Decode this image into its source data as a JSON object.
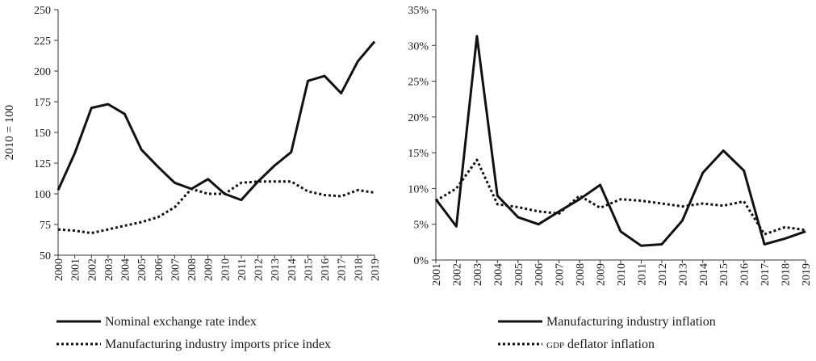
{
  "chart_data": [
    {
      "type": "line",
      "x": [
        "2000",
        "2001",
        "2002",
        "2003",
        "2004",
        "2005",
        "2006",
        "2007",
        "2008",
        "2009",
        "2010",
        "2011",
        "2012",
        "2013",
        "2014",
        "2015",
        "2016",
        "2017",
        "2018",
        "2019"
      ],
      "ylabel": "2010 = 100",
      "ylim": [
        50,
        250
      ],
      "yticks": [
        "50",
        "75",
        "100",
        "125",
        "150",
        "175",
        "200",
        "225",
        "250"
      ],
      "grid": false,
      "legend_placement": "bottom",
      "series": [
        {
          "name": "Nominal exchange rate index",
          "style": "solid",
          "values": [
            103,
            133,
            170,
            173,
            165,
            136,
            122,
            109,
            104,
            112,
            100,
            95,
            110,
            123,
            134,
            192,
            196,
            182,
            208,
            224
          ]
        },
        {
          "name": "Manufacturing industry imports price index",
          "style": "dotted",
          "values": [
            71,
            70,
            68,
            71,
            74,
            77,
            81,
            89,
            104,
            100,
            100,
            109,
            110,
            110,
            110,
            102,
            99,
            98,
            103,
            101
          ]
        }
      ]
    },
    {
      "type": "line",
      "x": [
        "2001",
        "2002",
        "2003",
        "2004",
        "2005",
        "2006",
        "2007",
        "2008",
        "2009",
        "2010",
        "2011",
        "2012",
        "2013",
        "2014",
        "2015",
        "2016",
        "2017",
        "2018",
        "2019"
      ],
      "ylim": [
        0,
        35
      ],
      "yticks": [
        "0%",
        "5%",
        "10%",
        "15%",
        "20%",
        "25%",
        "30%",
        "35%"
      ],
      "grid": false,
      "legend_placement": "bottom",
      "series": [
        {
          "name": "Manufacturing industry inflation",
          "style": "solid",
          "values": [
            8.5,
            4.7,
            31.3,
            9.0,
            6.0,
            5.0,
            6.8,
            8.5,
            10.5,
            4.0,
            2.0,
            2.2,
            5.5,
            12.2,
            15.3,
            12.5,
            2.2,
            3.0,
            4.0
          ]
        },
        {
          "name": "GDP deflator inflation",
          "style": "dotted",
          "values": [
            8.3,
            10.0,
            14.0,
            7.8,
            7.4,
            6.8,
            6.5,
            9.0,
            7.3,
            8.5,
            8.3,
            7.9,
            7.5,
            7.9,
            7.6,
            8.2,
            3.6,
            4.6,
            4.2
          ]
        }
      ]
    }
  ]
}
